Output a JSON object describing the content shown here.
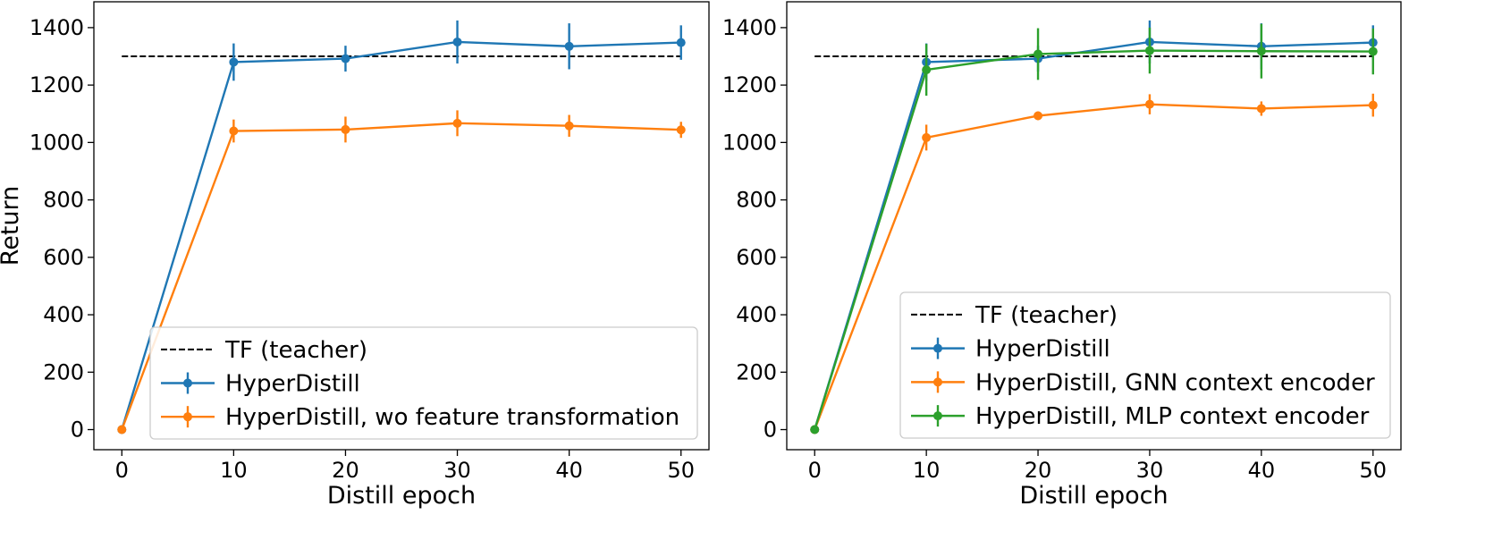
{
  "chart_data": [
    {
      "type": "line",
      "title": "",
      "xlabel": "Distill epoch",
      "ylabel": "Return",
      "xlim": [
        -2.5,
        52.5
      ],
      "ylim": [
        -70,
        1490
      ],
      "xticks": [
        0,
        10,
        20,
        30,
        40,
        50
      ],
      "yticks": [
        0,
        200,
        400,
        600,
        800,
        1000,
        1200,
        1400
      ],
      "xtick_labels": [
        "0",
        "10",
        "20",
        "30",
        "40",
        "50"
      ],
      "ytick_labels": [
        "0",
        "200",
        "400",
        "600",
        "800",
        "1000",
        "1200",
        "1400"
      ],
      "legend_position": "lower-right",
      "reference_line": {
        "name": "TF (teacher)",
        "value": 1300,
        "x_range": [
          0,
          50
        ],
        "style": "dashed",
        "color": "#000000"
      },
      "series": [
        {
          "name": "HyperDistill",
          "color": "#1f77b4",
          "x": [
            0,
            10,
            20,
            30,
            40,
            50
          ],
          "values": [
            0,
            1280,
            1292,
            1350,
            1335,
            1348
          ],
          "errors": [
            0,
            65,
            45,
            75,
            80,
            60
          ]
        },
        {
          "name": "HyperDistill, wo feature transformation",
          "color": "#ff7f0e",
          "x": [
            0,
            10,
            20,
            30,
            40,
            50
          ],
          "values": [
            0,
            1040,
            1045,
            1067,
            1058,
            1044
          ],
          "errors": [
            0,
            40,
            45,
            45,
            38,
            28
          ]
        }
      ],
      "legend": [
        "TF (teacher)",
        "HyperDistill",
        "HyperDistill, wo feature transformation"
      ]
    },
    {
      "type": "line",
      "title": "",
      "xlabel": "Distill epoch",
      "ylabel": "",
      "xlim": [
        -2.5,
        52.5
      ],
      "ylim": [
        -70,
        1490
      ],
      "xticks": [
        0,
        10,
        20,
        30,
        40,
        50
      ],
      "yticks": [
        0,
        200,
        400,
        600,
        800,
        1000,
        1200,
        1400
      ],
      "xtick_labels": [
        "0",
        "10",
        "20",
        "30",
        "40",
        "50"
      ],
      "ytick_labels": [
        "0",
        "200",
        "400",
        "600",
        "800",
        "1000",
        "1200",
        "1400"
      ],
      "legend_position": "lower-right",
      "reference_line": {
        "name": "TF (teacher)",
        "value": 1300,
        "x_range": [
          0,
          50
        ],
        "style": "dashed",
        "color": "#000000"
      },
      "series": [
        {
          "name": "HyperDistill",
          "color": "#1f77b4",
          "x": [
            0,
            10,
            20,
            30,
            40,
            50
          ],
          "values": [
            0,
            1280,
            1292,
            1350,
            1335,
            1348
          ],
          "errors": [
            0,
            65,
            45,
            75,
            80,
            60
          ]
        },
        {
          "name": "HyperDistill, GNN context encoder",
          "color": "#ff7f0e",
          "x": [
            0,
            10,
            20,
            30,
            40,
            50
          ],
          "values": [
            0,
            1017,
            1093,
            1133,
            1118,
            1130
          ],
          "errors": [
            0,
            45,
            15,
            35,
            25,
            40
          ]
        },
        {
          "name": "HyperDistill, MLP context encoder",
          "color": "#2ca02c",
          "x": [
            0,
            10,
            20,
            30,
            40,
            50
          ],
          "values": [
            0,
            1253,
            1308,
            1320,
            1318,
            1317
          ],
          "errors": [
            0,
            90,
            90,
            80,
            95,
            80
          ]
        }
      ],
      "legend": [
        "TF (teacher)",
        "HyperDistill",
        "HyperDistill, GNN context encoder",
        "HyperDistill, MLP context encoder"
      ]
    }
  ]
}
